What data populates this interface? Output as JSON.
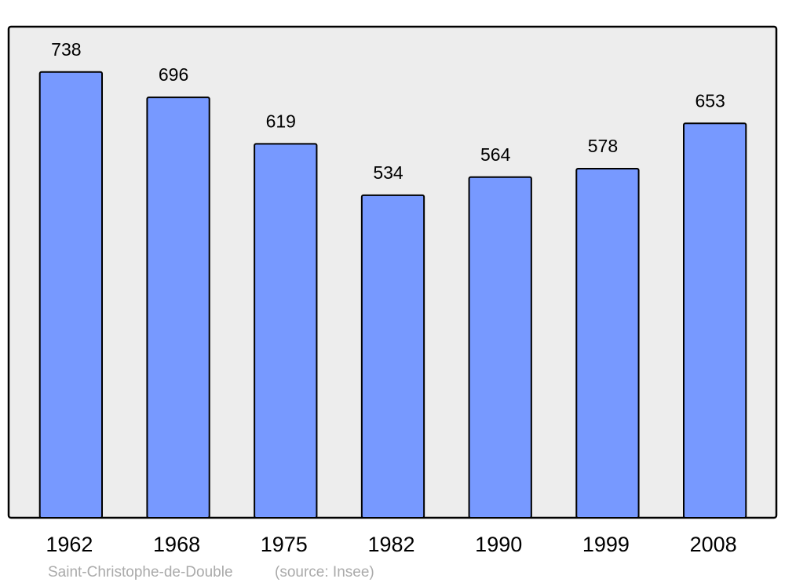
{
  "chart_data": {
    "type": "bar",
    "categories": [
      "1962",
      "1968",
      "1975",
      "1982",
      "1990",
      "1999",
      "2008"
    ],
    "values": [
      738,
      696,
      619,
      534,
      564,
      578,
      653
    ],
    "color": "#7799ff",
    "ylim": [
      0,
      813
    ],
    "caption": "Saint-Christophe-de-Double",
    "source": "(source: Insee)"
  }
}
